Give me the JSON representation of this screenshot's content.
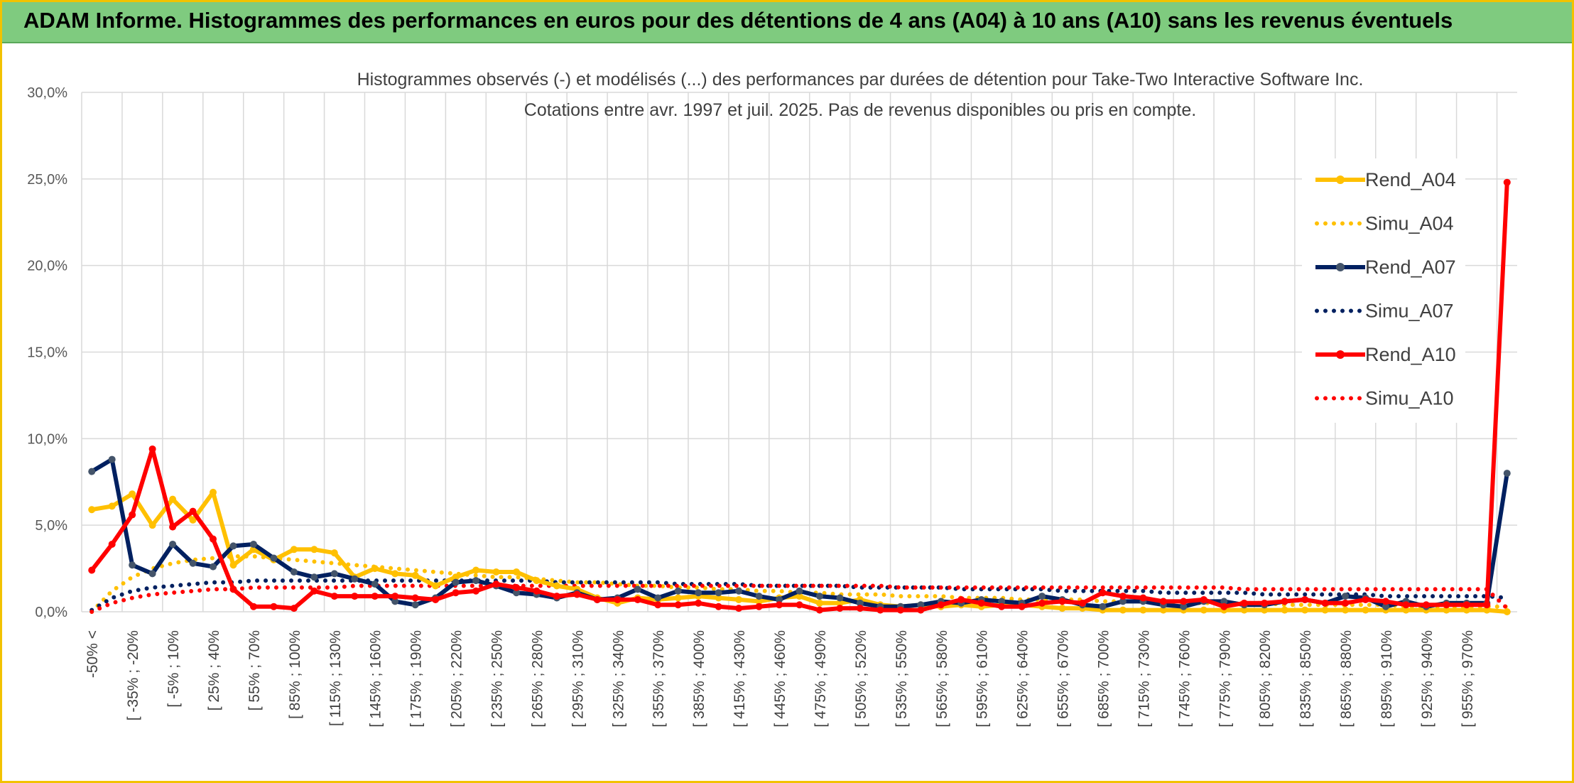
{
  "header": {
    "title": "ADAM Informe. Histogrammes des performances en euros pour des détentions de 4 ans (A04) à 10 ans (A10) sans les revenus éventuels"
  },
  "chart_data": {
    "type": "line",
    "title": "Histogrammes observés (-) et modélisés (...) des performances par durées de détention pour Take-Two Interactive Software Inc.",
    "subtitle": "Cotations entre avr. 1997 et juil. 2025. Pas de revenus disponibles ou pris en compte.",
    "xlabel": "",
    "ylabel": "",
    "ylim": [
      0,
      30
    ],
    "yticks": [
      "0,0%",
      "5,0%",
      "10,0%",
      "15,0%",
      "20,0%",
      "25,0%",
      "30,0%"
    ],
    "grid": true,
    "legend_position": "right",
    "x_tick_labels": [
      "-50% <",
      "[ -35% ; -20%",
      "[ -5% ; 10%",
      "[ 25% ; 40%",
      "[ 55% ; 70%",
      "[ 85% ; 100%",
      "[ 115% ; 130%",
      "[ 145% ; 160%",
      "[ 175% ; 190%",
      "[ 205% ; 220%",
      "[ 235% ; 250%",
      "[ 265% ; 280%",
      "[ 295% ; 310%",
      "[ 325% ; 340%",
      "[ 355% ; 370%",
      "[ 385% ; 400%",
      "[ 415% ; 430%",
      "[ 445% ; 460%",
      "[ 475% ; 490%",
      "[ 505% ; 520%",
      "[ 535% ; 550%",
      "[ 565% ; 580%",
      "[ 595% ; 610%",
      "[ 625% ; 640%",
      "[ 655% ; 670%",
      "[ 685% ; 700%",
      "[ 715% ; 730%",
      "[ 745% ; 760%",
      "[ 775% ; 790%",
      "[ 805% ; 820%",
      "[ 835% ; 850%",
      "[ 865% ; 880%",
      "[ 895% ; 910%",
      "[ 925% ; 940%",
      "[ 955% ; 970%"
    ],
    "series": [
      {
        "name": "Rend_A04",
        "style": "solid",
        "color": "#ffc000",
        "values": [
          5.9,
          6.1,
          6.8,
          5.0,
          6.5,
          5.3,
          6.9,
          2.7,
          3.6,
          3.0,
          3.6,
          3.6,
          3.4,
          2.0,
          2.5,
          2.2,
          2.1,
          1.5,
          2.0,
          2.4,
          2.3,
          2.3,
          1.8,
          1.5,
          1.3,
          0.8,
          0.5,
          0.8,
          0.7,
          0.8,
          0.9,
          0.8,
          0.7,
          0.6,
          0.8,
          0.9,
          0.5,
          0.5,
          0.7,
          0.4,
          0.3,
          0.4,
          0.3,
          0.4,
          0.3,
          0.4,
          0.4,
          0.3,
          0.2,
          0.2,
          0.1,
          0.1,
          0.1,
          0.1,
          0.1,
          0.1,
          0.1,
          0.1,
          0.1,
          0.1,
          0.1,
          0.1,
          0.1,
          0.1,
          0.1,
          0.1,
          0.1,
          0.1,
          0.1,
          0.1,
          0.0
        ]
      },
      {
        "name": "Simu_A04",
        "style": "dotted",
        "color": "#ffc000",
        "values": [
          0.0,
          1.2,
          2.0,
          2.5,
          2.8,
          3.0,
          3.1,
          3.2,
          3.2,
          3.1,
          3.0,
          2.9,
          2.8,
          2.7,
          2.6,
          2.5,
          2.4,
          2.3,
          2.2,
          2.1,
          2.0,
          2.0,
          1.9,
          1.8,
          1.7,
          1.7,
          1.6,
          1.5,
          1.5,
          1.4,
          1.4,
          1.3,
          1.3,
          1.2,
          1.2,
          1.1,
          1.1,
          1.0,
          1.0,
          1.0,
          0.9,
          0.9,
          0.9,
          0.8,
          0.8,
          0.8,
          0.7,
          0.7,
          0.7,
          0.7,
          0.6,
          0.6,
          0.6,
          0.6,
          0.5,
          0.5,
          0.5,
          0.5,
          0.5,
          0.4,
          0.4,
          0.4,
          0.4,
          0.4,
          0.4,
          0.3,
          0.3,
          0.3,
          0.3,
          0.3,
          0.3
        ]
      },
      {
        "name": "Rend_A07",
        "style": "solid",
        "color": "#002060",
        "values": [
          8.1,
          8.8,
          2.7,
          2.2,
          3.9,
          2.8,
          2.6,
          3.8,
          3.9,
          3.1,
          2.3,
          2.0,
          2.2,
          1.9,
          1.6,
          0.6,
          0.4,
          0.8,
          1.7,
          1.8,
          1.5,
          1.1,
          1.0,
          0.8,
          1.1,
          0.7,
          0.8,
          1.3,
          0.8,
          1.2,
          1.1,
          1.1,
          1.2,
          0.9,
          0.7,
          1.2,
          0.9,
          0.8,
          0.5,
          0.3,
          0.3,
          0.4,
          0.6,
          0.5,
          0.7,
          0.6,
          0.5,
          0.9,
          0.7,
          0.4,
          0.3,
          0.6,
          0.6,
          0.4,
          0.3,
          0.6,
          0.6,
          0.4,
          0.4,
          0.6,
          0.7,
          0.5,
          0.9,
          0.8,
          0.3,
          0.6,
          0.3,
          0.5,
          0.5,
          0.5,
          8.0
        ]
      },
      {
        "name": "Simu_A07",
        "style": "dotted",
        "color": "#002060",
        "values": [
          0.1,
          0.8,
          1.2,
          1.4,
          1.5,
          1.6,
          1.7,
          1.7,
          1.8,
          1.8,
          1.8,
          1.8,
          1.8,
          1.8,
          1.8,
          1.8,
          1.8,
          1.8,
          1.8,
          1.8,
          1.8,
          1.8,
          1.8,
          1.7,
          1.7,
          1.7,
          1.7,
          1.7,
          1.7,
          1.6,
          1.6,
          1.6,
          1.6,
          1.5,
          1.5,
          1.5,
          1.5,
          1.5,
          1.4,
          1.4,
          1.4,
          1.4,
          1.4,
          1.3,
          1.3,
          1.3,
          1.3,
          1.3,
          1.2,
          1.2,
          1.2,
          1.2,
          1.2,
          1.1,
          1.1,
          1.1,
          1.1,
          1.1,
          1.0,
          1.0,
          1.0,
          1.0,
          1.0,
          1.0,
          0.9,
          0.9,
          0.9,
          0.9,
          0.9,
          0.9,
          0.8
        ]
      },
      {
        "name": "Rend_A10",
        "style": "solid",
        "color": "#ff0000",
        "values": [
          2.4,
          3.9,
          5.6,
          9.4,
          4.9,
          5.8,
          4.2,
          1.3,
          0.3,
          0.3,
          0.2,
          1.2,
          0.9,
          0.9,
          0.9,
          0.9,
          0.8,
          0.7,
          1.1,
          1.2,
          1.6,
          1.4,
          1.2,
          0.9,
          1.0,
          0.7,
          0.7,
          0.7,
          0.4,
          0.4,
          0.5,
          0.3,
          0.2,
          0.3,
          0.4,
          0.4,
          0.1,
          0.2,
          0.2,
          0.1,
          0.1,
          0.1,
          0.4,
          0.7,
          0.5,
          0.3,
          0.3,
          0.5,
          0.6,
          0.5,
          1.1,
          0.9,
          0.8,
          0.6,
          0.6,
          0.7,
          0.3,
          0.5,
          0.5,
          0.6,
          0.7,
          0.5,
          0.5,
          0.7,
          0.6,
          0.4,
          0.4,
          0.4,
          0.4,
          0.4,
          24.8
        ]
      },
      {
        "name": "Simu_A10",
        "style": "dotted",
        "color": "#ff0000",
        "values": [
          0.0,
          0.5,
          0.8,
          1.0,
          1.1,
          1.2,
          1.3,
          1.3,
          1.4,
          1.4,
          1.4,
          1.4,
          1.4,
          1.5,
          1.5,
          1.5,
          1.5,
          1.5,
          1.5,
          1.5,
          1.5,
          1.5,
          1.5,
          1.5,
          1.5,
          1.5,
          1.5,
          1.5,
          1.5,
          1.5,
          1.5,
          1.5,
          1.5,
          1.5,
          1.5,
          1.5,
          1.5,
          1.5,
          1.5,
          1.5,
          1.4,
          1.4,
          1.4,
          1.4,
          1.4,
          1.4,
          1.4,
          1.4,
          1.4,
          1.4,
          1.4,
          1.4,
          1.4,
          1.4,
          1.4,
          1.4,
          1.4,
          1.3,
          1.3,
          1.3,
          1.3,
          1.3,
          1.3,
          1.3,
          1.3,
          1.3,
          1.3,
          1.3,
          1.3,
          1.3,
          0.2
        ]
      }
    ]
  }
}
